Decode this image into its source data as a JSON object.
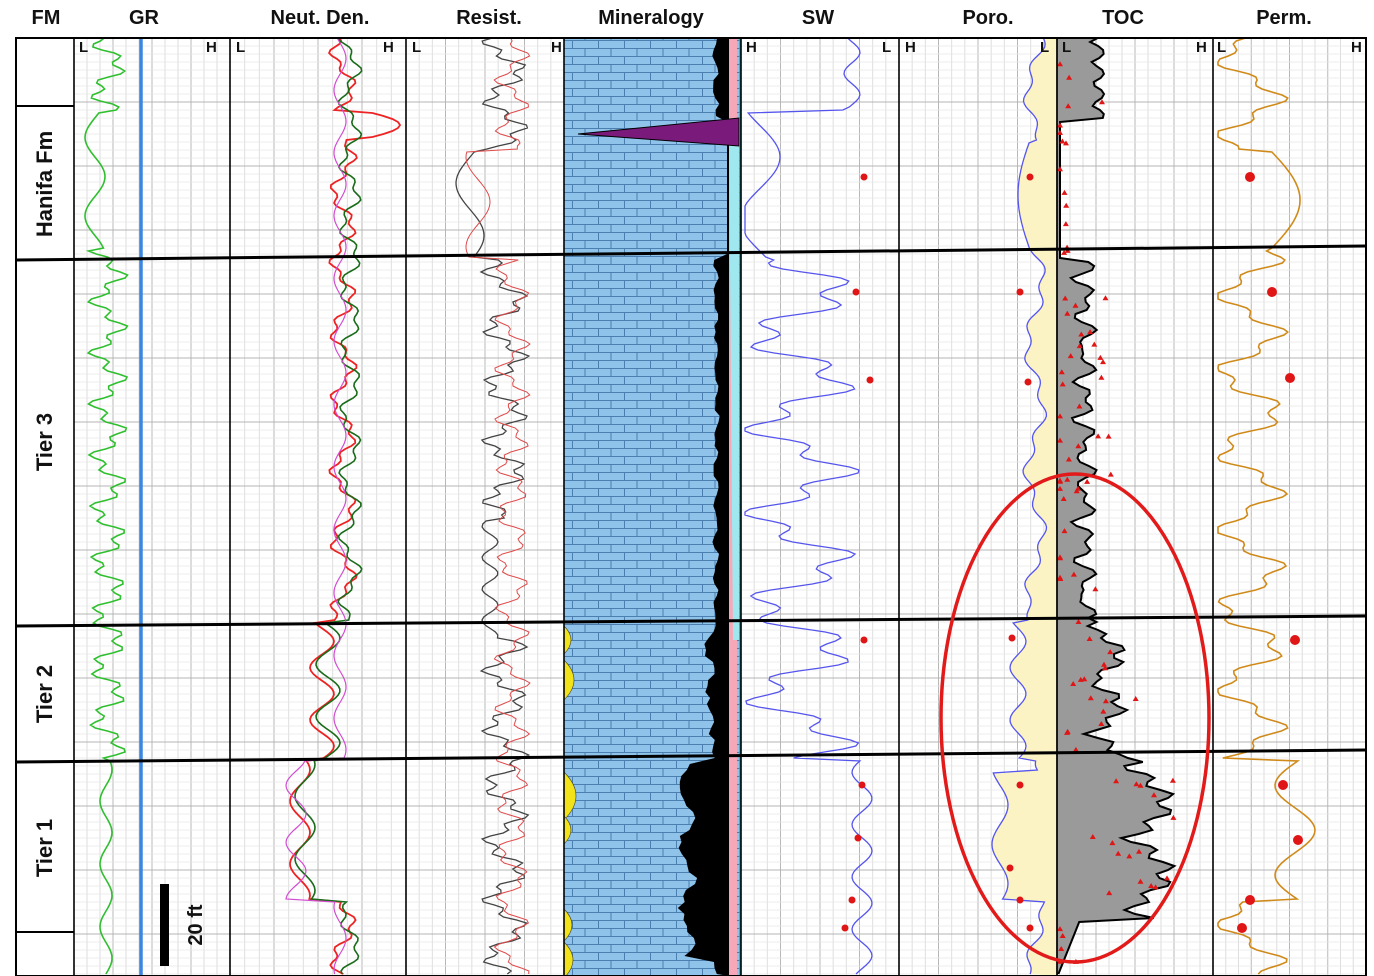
{
  "chart_data": {
    "type": "well-log",
    "headers": {
      "fm": "FM",
      "gr": "GR",
      "neut_den": "Neut. Den.",
      "resist": "Resist.",
      "mineralogy": "Mineralogy",
      "sw": "SW",
      "poro": "Poro.",
      "toc": "TOC",
      "perm": "Perm."
    },
    "scale_labels": {
      "gr": [
        "L",
        "H"
      ],
      "neut_den": [
        "L",
        "H"
      ],
      "resist": [
        "L",
        "H"
      ],
      "sw": [
        "H",
        "L"
      ],
      "poro": [
        "H",
        "L"
      ],
      "toc": [
        "L",
        "H"
      ],
      "perm": [
        "L",
        "H"
      ]
    },
    "formations": [
      "",
      "Hanifa Fm",
      "Tier 3",
      "Tier 2",
      "Tier 1",
      ""
    ],
    "scale_bar": "20 ft",
    "series_colors": {
      "gr": "#2fbf2f",
      "gr_baseline": "#3a86e0",
      "neut": "#ee2222",
      "den": "#1a6b1a",
      "den_alt": "#d24cd2",
      "resist_deep": "#444444",
      "resist_shallow": "#e04a4a",
      "sw": "#5555ee",
      "poro": "#5555ee",
      "poro_fill": "#fbf3c4",
      "toc_fill": "#9a9a9a",
      "core": "#e01515",
      "perm": "#d08a1a",
      "calcite": "#8fc3ea",
      "dolomite_kerogen": "#000000",
      "anhydrite": "#7a1a7a",
      "clay": "#f2e21a",
      "pink_mineral": "#f7a8b8",
      "cyan_mineral": "#9fe8f0",
      "highlight": "#e21a1a"
    }
  }
}
